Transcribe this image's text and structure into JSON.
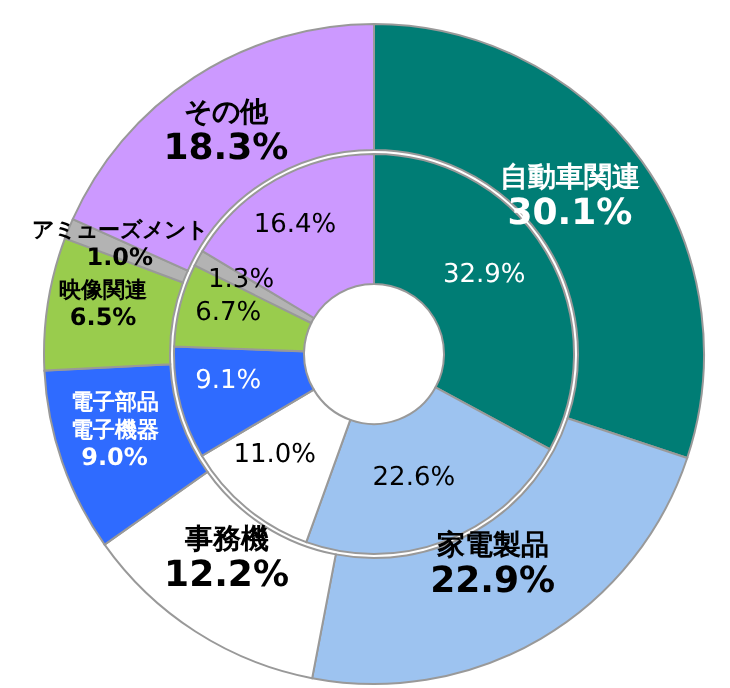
{
  "chart_data": {
    "type": "donut",
    "categories": [
      "自動車関連",
      "家電製品",
      "事務機",
      "電子部品電子機器",
      "映像関連",
      "アミューズメント",
      "その他"
    ],
    "colors": [
      "#007d75",
      "#9dc3f0",
      "#ffffff",
      "#2f6bff",
      "#99cc4d",
      "#b3b3b3",
      "#cc99ff"
    ],
    "series": [
      {
        "values": [
          30.1,
          22.9,
          12.2,
          9.0,
          6.5,
          1.0,
          18.3
        ],
        "value_labels": [
          "30.1%",
          "22.9%",
          "12.2%",
          "9.0%",
          "6.5%",
          "1.0%",
          "18.3%"
        ]
      },
      {
        "values": [
          32.9,
          22.6,
          11.0,
          9.1,
          6.7,
          1.3,
          16.4
        ],
        "value_labels": [
          "32.9%",
          "22.6%",
          "11.0%",
          "9.1%",
          "6.7%",
          "1.3%",
          "16.4%"
        ]
      }
    ]
  }
}
